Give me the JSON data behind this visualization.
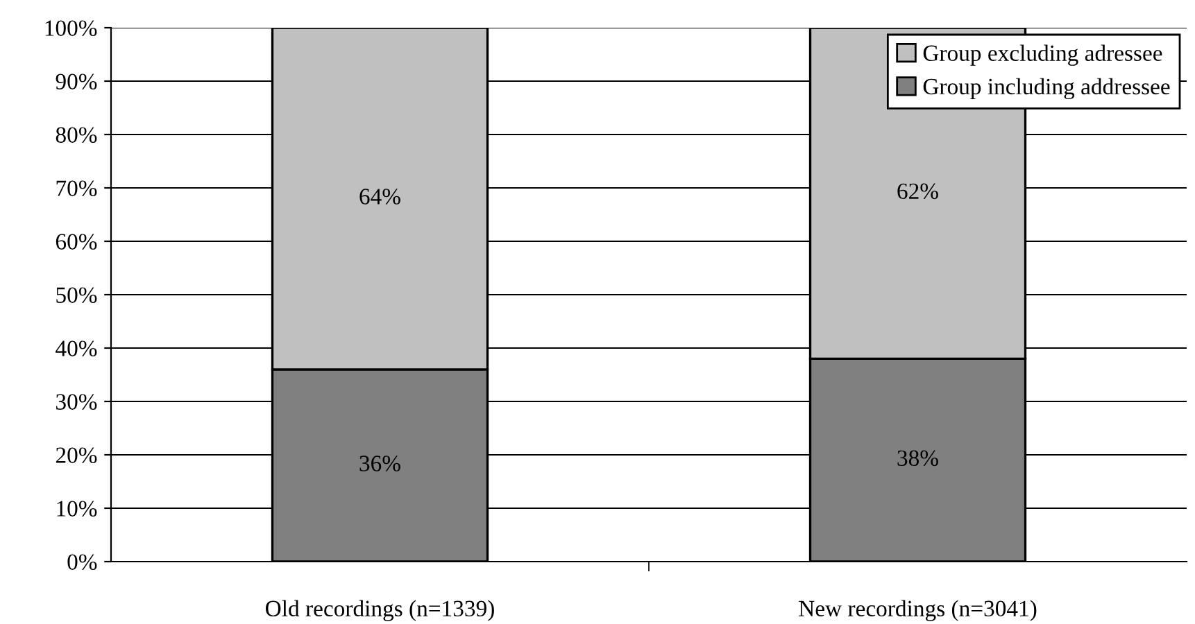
{
  "chart_data": {
    "type": "bar",
    "stacked": true,
    "categories": [
      "Old recordings (n=1339)",
      "New recordings (n=3041)"
    ],
    "series": [
      {
        "name": "Group including addressee",
        "color": "#808080",
        "values": [
          36,
          38
        ],
        "value_labels": [
          "36%",
          "38%"
        ]
      },
      {
        "name": "Group excluding adressee",
        "color": "#c0c0c0",
        "values": [
          64,
          62
        ],
        "value_labels": [
          "64%",
          "62%"
        ]
      }
    ],
    "ylim": [
      0,
      100
    ],
    "yticks": [
      {
        "value": 0,
        "label": "0%"
      },
      {
        "value": 10,
        "label": "10%"
      },
      {
        "value": 20,
        "label": "20%"
      },
      {
        "value": 30,
        "label": "30%"
      },
      {
        "value": 40,
        "label": "40%"
      },
      {
        "value": 50,
        "label": "50%"
      },
      {
        "value": 60,
        "label": "60%"
      },
      {
        "value": 70,
        "label": "70%"
      },
      {
        "value": 80,
        "label": "80%"
      },
      {
        "value": 90,
        "label": "90%"
      },
      {
        "value": 100,
        "label": "100%"
      }
    ],
    "grid": "y",
    "legend": "top right"
  }
}
